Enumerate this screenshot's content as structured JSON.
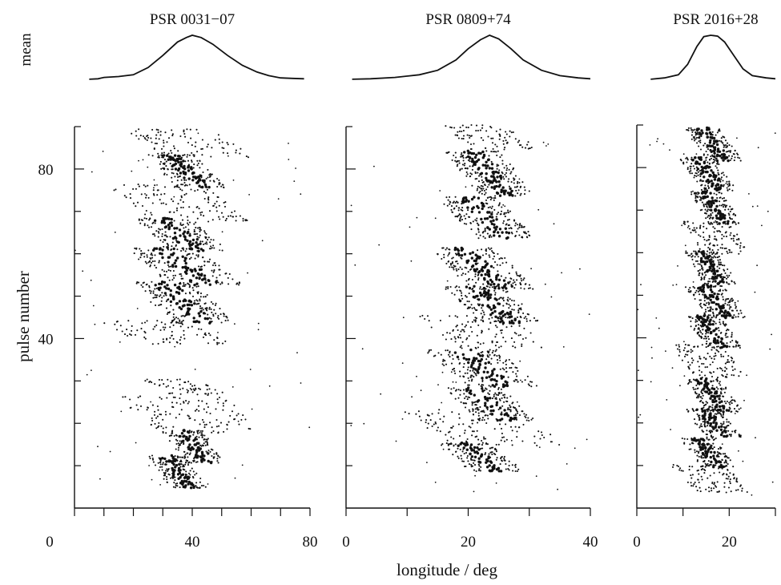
{
  "figure": {
    "ylabel": "pulse number",
    "xlabel": "longitude / deg",
    "mean_label": "mean",
    "ink_color": "#111111"
  },
  "chart_data": [
    {
      "type": "scatter",
      "title": "PSR 0031−07",
      "xlim": [
        0,
        80
      ],
      "ylim": [
        0,
        90
      ],
      "xticks": [
        0,
        40,
        80
      ],
      "yticks": [
        80,
        40
      ],
      "profile": [
        [
          5,
          0.02
        ],
        [
          8,
          0.03
        ],
        [
          10,
          0.06
        ],
        [
          15,
          0.08
        ],
        [
          20,
          0.12
        ],
        [
          25,
          0.28
        ],
        [
          30,
          0.55
        ],
        [
          35,
          0.85
        ],
        [
          38,
          0.95
        ],
        [
          40,
          1.0
        ],
        [
          43,
          0.95
        ],
        [
          47,
          0.8
        ],
        [
          52,
          0.55
        ],
        [
          57,
          0.33
        ],
        [
          62,
          0.18
        ],
        [
          66,
          0.1
        ],
        [
          70,
          0.05
        ],
        [
          74,
          0.04
        ],
        [
          78,
          0.03
        ]
      ],
      "drift_bands": [
        {
          "y0": 5,
          "y1": 12,
          "x0": 26,
          "x1": 44,
          "thick": true
        },
        {
          "y0": 11,
          "y1": 18,
          "x0": 31,
          "x1": 50,
          "thick": true
        },
        {
          "y0": 18,
          "y1": 26,
          "x0": 22,
          "x1": 58,
          "thick": false
        },
        {
          "y0": 27,
          "y1": 30,
          "x0": 28,
          "x1": 48,
          "thick": false
        },
        {
          "y0": 39,
          "y1": 44,
          "x0": 15,
          "x1": 46,
          "thick": false
        },
        {
          "y0": 44,
          "y1": 53,
          "x0": 22,
          "x1": 52,
          "thick": true
        },
        {
          "y0": 53,
          "y1": 61,
          "x0": 20,
          "x1": 55,
          "thick": true
        },
        {
          "y0": 61,
          "y1": 68,
          "x0": 22,
          "x1": 50,
          "thick": true
        },
        {
          "y0": 68,
          "y1": 76,
          "x0": 18,
          "x1": 52,
          "thick": false
        },
        {
          "y0": 76,
          "y1": 83,
          "x0": 26,
          "x1": 50,
          "thick": true
        },
        {
          "y0": 83,
          "y1": 89,
          "x0": 22,
          "x1": 55,
          "thick": false
        }
      ]
    },
    {
      "type": "scatter",
      "title": "PSR 0809+74",
      "xlim": [
        0,
        40
      ],
      "ylim": [
        0,
        90
      ],
      "xticks": [
        0,
        20,
        40
      ],
      "yticks": [
        80,
        40
      ],
      "profile": [
        [
          1,
          0.02
        ],
        [
          4,
          0.03
        ],
        [
          8,
          0.06
        ],
        [
          12,
          0.12
        ],
        [
          15,
          0.22
        ],
        [
          18,
          0.45
        ],
        [
          20,
          0.7
        ],
        [
          22,
          0.9
        ],
        [
          23.5,
          1.0
        ],
        [
          25,
          0.92
        ],
        [
          27,
          0.7
        ],
        [
          29,
          0.45
        ],
        [
          32,
          0.22
        ],
        [
          35,
          0.1
        ],
        [
          38,
          0.05
        ],
        [
          40,
          0.03
        ]
      ],
      "drift_bands": [
        {
          "y0": 9,
          "y1": 15,
          "x0": 16,
          "x1": 28,
          "thick": true
        },
        {
          "y0": 15,
          "y1": 23,
          "x0": 13,
          "x1": 32,
          "thick": false
        },
        {
          "y0": 21,
          "y1": 28,
          "x0": 17,
          "x1": 30,
          "thick": true
        },
        {
          "y0": 29,
          "y1": 37,
          "x0": 14,
          "x1": 31,
          "thick": true
        },
        {
          "y0": 38,
          "y1": 45,
          "x0": 15,
          "x1": 30,
          "thick": false
        },
        {
          "y0": 44,
          "y1": 52,
          "x0": 17,
          "x1": 31,
          "thick": true
        },
        {
          "y0": 52,
          "y1": 61,
          "x0": 15,
          "x1": 30,
          "thick": true
        },
        {
          "y0": 64,
          "y1": 73,
          "x0": 16,
          "x1": 30,
          "thick": true
        },
        {
          "y0": 74,
          "y1": 84,
          "x0": 17,
          "x1": 30,
          "thick": true
        },
        {
          "y0": 85,
          "y1": 90,
          "x0": 18,
          "x1": 29,
          "thick": false
        }
      ]
    },
    {
      "type": "scatter",
      "title": "PSR 2016+28",
      "xlim": [
        0,
        30
      ],
      "ylim": [
        0,
        90
      ],
      "xticks": [
        0,
        20
      ],
      "yticks": [
        80,
        40
      ],
      "profile": [
        [
          3,
          0.02
        ],
        [
          6,
          0.05
        ],
        [
          9,
          0.12
        ],
        [
          11,
          0.35
        ],
        [
          13,
          0.75
        ],
        [
          14.5,
          0.97
        ],
        [
          16,
          1.0
        ],
        [
          17.5,
          0.98
        ],
        [
          19,
          0.85
        ],
        [
          21,
          0.55
        ],
        [
          23,
          0.25
        ],
        [
          25,
          0.1
        ],
        [
          28,
          0.05
        ],
        [
          30,
          0.03
        ]
      ],
      "drift_bands": [
        {
          "y0": 4,
          "y1": 10,
          "x0": 10,
          "x1": 22,
          "thick": false
        },
        {
          "y0": 10,
          "y1": 16,
          "x0": 10,
          "x1": 21,
          "thick": true
        },
        {
          "y0": 17,
          "y1": 23,
          "x0": 11,
          "x1": 22,
          "thick": true
        },
        {
          "y0": 23,
          "y1": 30,
          "x0": 11,
          "x1": 22,
          "thick": true
        },
        {
          "y0": 31,
          "y1": 38,
          "x0": 10,
          "x1": 21,
          "thick": false
        },
        {
          "y0": 38,
          "y1": 45,
          "x0": 11,
          "x1": 22,
          "thick": true
        },
        {
          "y0": 45,
          "y1": 52,
          "x0": 11,
          "x1": 23,
          "thick": true
        },
        {
          "y0": 53,
          "y1": 60,
          "x0": 11,
          "x1": 21,
          "thick": true
        },
        {
          "y0": 60,
          "y1": 67,
          "x0": 12,
          "x1": 22,
          "thick": false
        },
        {
          "y0": 67,
          "y1": 74,
          "x0": 12,
          "x1": 22,
          "thick": true
        },
        {
          "y0": 75,
          "y1": 82,
          "x0": 10,
          "x1": 21,
          "thick": true
        },
        {
          "y0": 82,
          "y1": 89,
          "x0": 11,
          "x1": 22,
          "thick": true
        }
      ]
    }
  ]
}
